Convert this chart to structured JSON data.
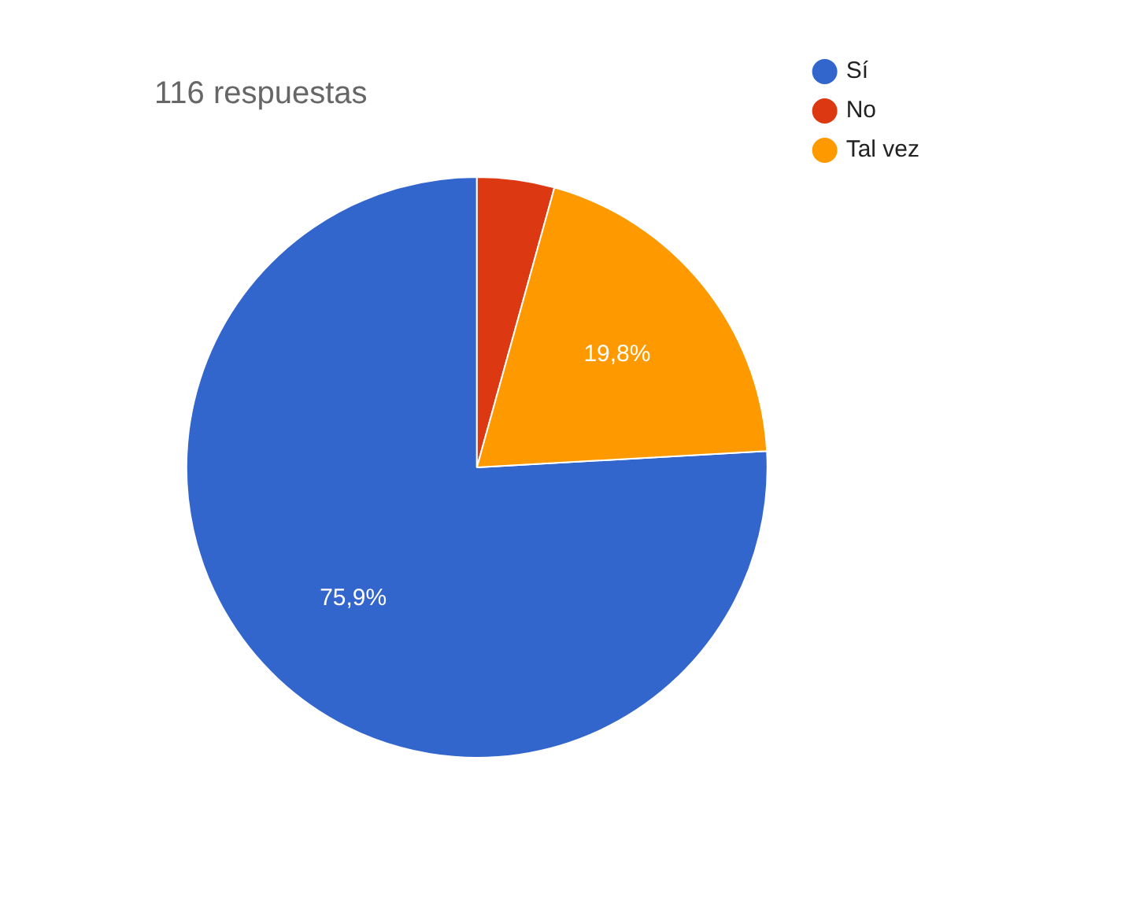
{
  "chart_data": {
    "type": "pie",
    "title": "116 respuestas",
    "categories": [
      "Sí",
      "No",
      "Tal vez"
    ],
    "values": [
      75.9,
      4.3,
      19.8
    ],
    "colors": [
      "#3366cc",
      "#dc3912",
      "#ff9900"
    ],
    "value_labels": [
      "75,9%",
      null,
      "19,8%"
    ],
    "legend": "top right"
  }
}
